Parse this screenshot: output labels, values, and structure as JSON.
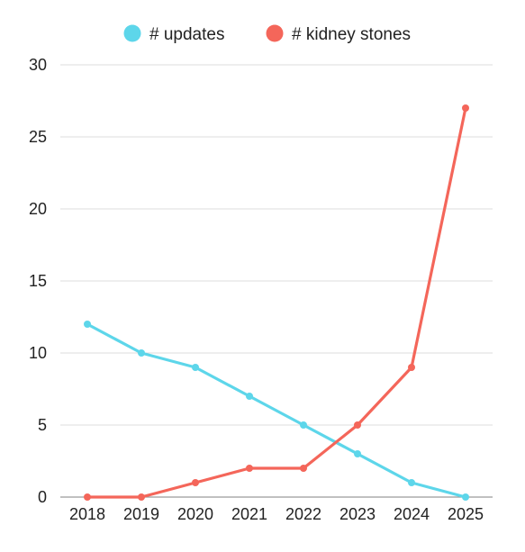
{
  "chart_data": {
    "type": "line",
    "title": "",
    "xlabel": "",
    "ylabel": "",
    "x": [
      "2018",
      "2019",
      "2020",
      "2021",
      "2022",
      "2023",
      "2024",
      "2025"
    ],
    "ylim": [
      0,
      30
    ],
    "yticks": [
      0,
      5,
      10,
      15,
      20,
      25,
      30
    ],
    "grid": true,
    "legend_position": "top-center",
    "series": [
      {
        "name": "# updates",
        "color": "#5dd6ea",
        "values": [
          12,
          10,
          9,
          7,
          5,
          3,
          1,
          0
        ]
      },
      {
        "name": "# kidney stones",
        "color": "#f4665a",
        "values": [
          0,
          0,
          1,
          2,
          2,
          5,
          9,
          27
        ]
      }
    ]
  }
}
